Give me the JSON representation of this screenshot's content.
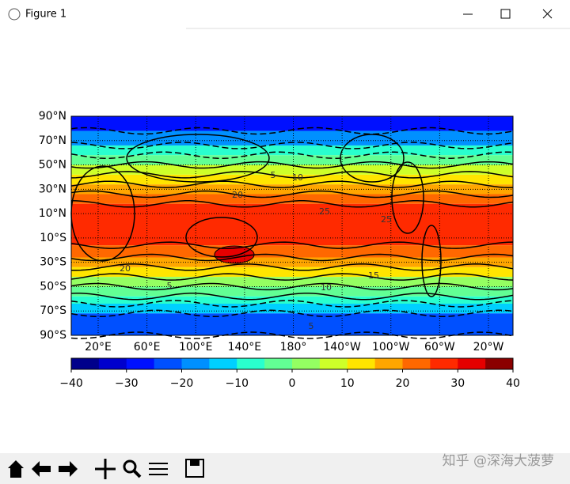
{
  "window": {
    "title": "Figure 1"
  },
  "map": {
    "lat_ticks": [
      "90°N",
      "70°N",
      "50°N",
      "30°N",
      "10°N",
      "10°S",
      "30°S",
      "50°S",
      "70°S",
      "90°S"
    ],
    "lon_ticks": [
      "20°E",
      "60°E",
      "100°E",
      "140°E",
      "180°",
      "140°W",
      "100°W",
      "60°W",
      "20°W"
    ],
    "contour_labels": [
      "5",
      "10",
      "20",
      "25",
      "25",
      "15",
      "20",
      "5",
      "10",
      "5"
    ]
  },
  "colorbar": {
    "colors": [
      "#00008b",
      "#0000cd",
      "#0010ff",
      "#0050ff",
      "#0090ff",
      "#00d0ff",
      "#29ffce",
      "#62ff94",
      "#94ff62",
      "#ceff29",
      "#ffe500",
      "#ffa600",
      "#ff6800",
      "#ff2a00",
      "#e50000",
      "#8b0000"
    ],
    "lim": [
      -40,
      40
    ],
    "ticks": [
      {
        "value": -40,
        "label": "−40"
      },
      {
        "value": -30,
        "label": "−30"
      },
      {
        "value": -20,
        "label": "−20"
      },
      {
        "value": -10,
        "label": "−10"
      },
      0,
      10,
      20,
      30,
      40
    ]
  },
  "watermark": "知乎 @深海大菠萝"
}
